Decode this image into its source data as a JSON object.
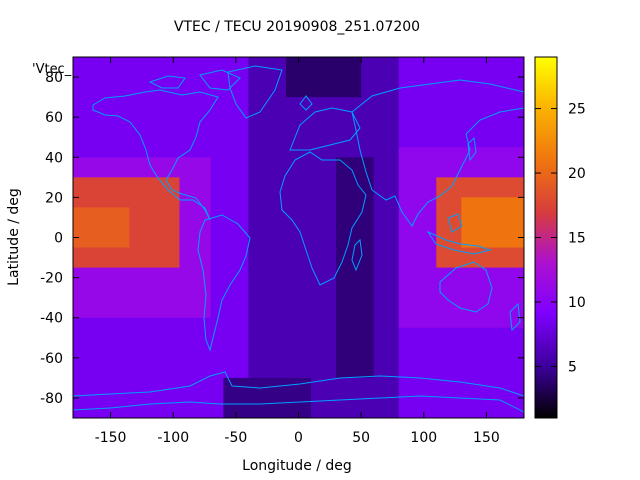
{
  "chart_data": {
    "type": "heatmap",
    "title": "VTEC / TECU 20190908_251.07200",
    "xlabel": "Longitude / deg",
    "ylabel": "Latitude / deg",
    "key_label": "'Vtec_",
    "xlim": [
      -180,
      180
    ],
    "ylim": [
      -90,
      90
    ],
    "colorbar_range": [
      1,
      29
    ],
    "xticks": [
      -150,
      -100,
      -50,
      0,
      50,
      100,
      150
    ],
    "yticks": [
      -80,
      -60,
      -40,
      -20,
      0,
      20,
      40,
      60,
      80
    ],
    "colorbar_ticks": [
      5,
      10,
      15,
      20,
      25
    ],
    "palette": [
      "#000000",
      "#3b0099",
      "#7f00ff",
      "#ad10d0",
      "#d73d3d",
      "#ef7410",
      "#fbb300",
      "#ffff00"
    ],
    "coastline_color": "#00a0ff",
    "regions": [
      {
        "lon": [
          -180,
          180
        ],
        "lat": [
          -90,
          90
        ],
        "value": 8.5
      },
      {
        "lon": [
          -40,
          80
        ],
        "lat": [
          -90,
          90
        ],
        "value": 6.0
      },
      {
        "lon": [
          30,
          60
        ],
        "lat": [
          -70,
          40
        ],
        "value": 4.2
      },
      {
        "lon": [
          -10,
          50
        ],
        "lat": [
          70,
          90
        ],
        "value": 3.8
      },
      {
        "lon": [
          -60,
          10
        ],
        "lat": [
          -90,
          -70
        ],
        "value": 4.5
      },
      {
        "lon": [
          80,
          180
        ],
        "lat": [
          -45,
          45
        ],
        "value": 10.5
      },
      {
        "lon": [
          -180,
          -70
        ],
        "lat": [
          -40,
          40
        ],
        "value": 11.0
      },
      {
        "lon": [
          110,
          180
        ],
        "lat": [
          -15,
          30
        ],
        "value": 18.0
      },
      {
        "lon": [
          130,
          180
        ],
        "lat": [
          -5,
          20
        ],
        "value": 21.0
      },
      {
        "lon": [
          -180,
          -95
        ],
        "lat": [
          -15,
          30
        ],
        "value": 17.5
      },
      {
        "lon": [
          -180,
          -135
        ],
        "lat": [
          -5,
          15
        ],
        "value": 19.5
      }
    ]
  }
}
